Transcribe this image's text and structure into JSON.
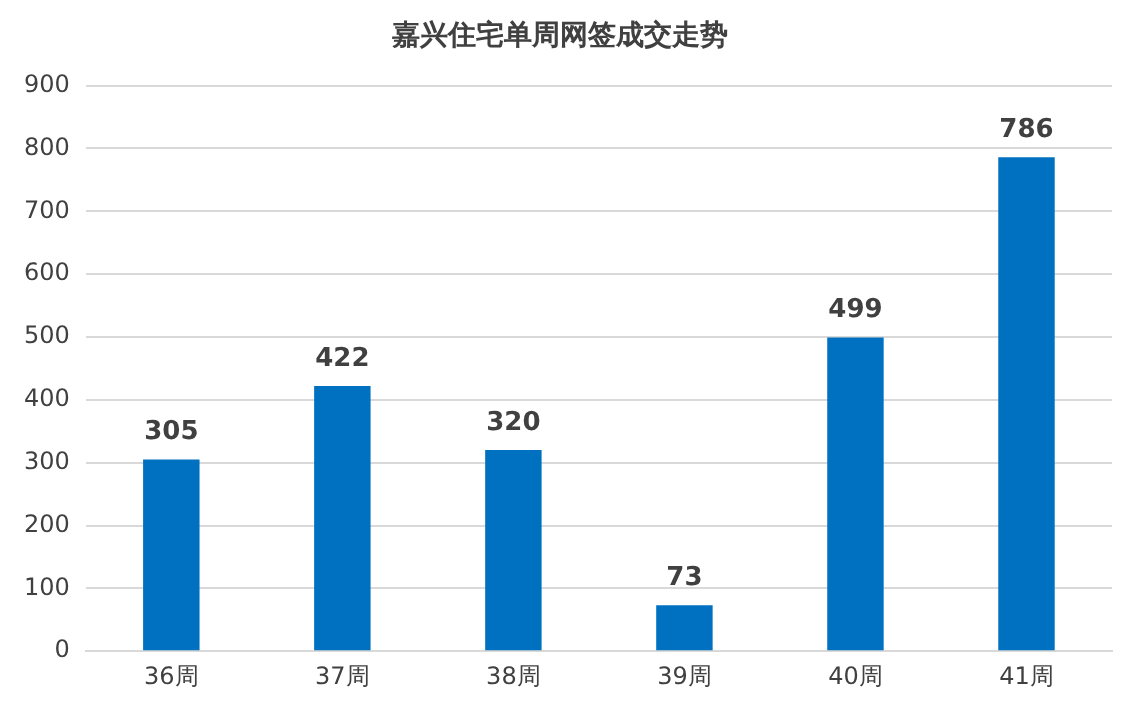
{
  "chart_data": {
    "type": "bar",
    "title": "嘉兴住宅单周网签成交走势",
    "categories": [
      "36周",
      "37周",
      "38周",
      "39周",
      "40周",
      "41周"
    ],
    "values": [
      305,
      422,
      320,
      73,
      499,
      786
    ],
    "color": "#0070c0",
    "ylim": [
      0,
      900
    ],
    "yticks": [
      0,
      100,
      200,
      300,
      400,
      500,
      600,
      700,
      800,
      900
    ],
    "grid": "y",
    "data_labels": true,
    "legend": false
  }
}
